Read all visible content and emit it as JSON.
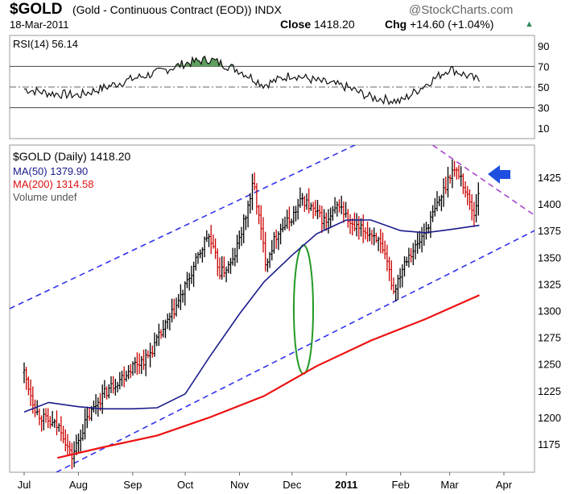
{
  "header": {
    "symbol": "$GOLD",
    "description": "(Gold - Continuous Contract (EOD))",
    "exchange": "INDX",
    "brand": "@StockCharts.com",
    "date": "18-Mar-2011",
    "close_label": "Close",
    "close_value": "1418.20",
    "chg_label": "Chg",
    "chg_value": "+14.60 (+1.04%)",
    "up_arrow_glyph": "▲"
  },
  "rsi_panel": {
    "label": "RSI(14) 56.14"
  },
  "price_panel": {
    "legend": {
      "title": "$GOLD (Daily) 1418.20",
      "ma50": "MA(50) 1379.90",
      "ma200": "MA(200) 1314.58",
      "volume": "Volume undef"
    }
  },
  "colors": {
    "up_bar": "#000000",
    "down_bar": "#cc0000",
    "ma50": "#1a1a8c",
    "ma200": "#ee1111",
    "channel": "#3333ee",
    "resistance": "#aa44cc",
    "arrow": "#1f4fe0",
    "ellipse": "#229922",
    "rsi_fill": "#5f9f5f"
  },
  "chart_data": [
    {
      "type": "line",
      "indicator": "RSI(14)",
      "yticks": [
        10,
        30,
        50,
        70,
        90
      ],
      "ylim": [
        0,
        100
      ],
      "reference_lines": [
        30,
        50,
        70
      ],
      "x": [
        "2010-07-01",
        "2010-07-15",
        "2010-08-01",
        "2010-08-15",
        "2010-09-01",
        "2010-09-15",
        "2010-10-01",
        "2010-10-15",
        "2010-11-01",
        "2010-11-15",
        "2010-12-01",
        "2010-12-15",
        "2011-01-01",
        "2011-01-15",
        "2011-02-01",
        "2011-02-15",
        "2011-03-01",
        "2011-03-18"
      ],
      "values": [
        48,
        44,
        42,
        49,
        58,
        64,
        73,
        77,
        66,
        52,
        62,
        56,
        50,
        40,
        36,
        52,
        68,
        56
      ]
    },
    {
      "type": "line",
      "series_kind": "ohlc",
      "yticks": [
        1175,
        1200,
        1225,
        1250,
        1275,
        1300,
        1325,
        1350,
        1375,
        1400,
        1425
      ],
      "ylim": [
        1155,
        1450
      ],
      "xticks": [
        "Jul",
        "Aug",
        "Sep",
        "Oct",
        "Nov",
        "Dec",
        "2011",
        "Feb",
        "Mar",
        "Apr"
      ],
      "price_x": [
        "2010-07-01",
        "2010-07-08",
        "2010-07-15",
        "2010-07-22",
        "2010-07-28",
        "2010-08-05",
        "2010-08-12",
        "2010-08-19",
        "2010-08-26",
        "2010-09-02",
        "2010-09-09",
        "2010-09-16",
        "2010-09-23",
        "2010-09-30",
        "2010-10-07",
        "2010-10-14",
        "2010-10-21",
        "2010-10-28",
        "2010-11-04",
        "2010-11-09",
        "2010-11-16",
        "2010-11-23",
        "2010-11-30",
        "2010-12-07",
        "2010-12-14",
        "2010-12-21",
        "2010-12-28",
        "2011-01-04",
        "2011-01-11",
        "2011-01-18",
        "2011-01-25",
        "2011-01-28",
        "2011-02-04",
        "2011-02-11",
        "2011-02-18",
        "2011-02-25",
        "2011-03-02",
        "2011-03-07",
        "2011-03-10",
        "2011-03-15",
        "2011-03-18"
      ],
      "price": [
        1242,
        1205,
        1195,
        1190,
        1162,
        1195,
        1215,
        1228,
        1238,
        1250,
        1255,
        1275,
        1295,
        1318,
        1345,
        1372,
        1335,
        1345,
        1385,
        1420,
        1345,
        1375,
        1385,
        1405,
        1392,
        1382,
        1400,
        1378,
        1375,
        1370,
        1340,
        1318,
        1350,
        1362,
        1385,
        1410,
        1432,
        1428,
        1412,
        1390,
        1418
      ],
      "ma50_x": [
        "2010-07-01",
        "2010-07-15",
        "2010-08-01",
        "2010-08-15",
        "2010-09-01",
        "2010-09-15",
        "2010-10-01",
        "2010-10-15",
        "2010-11-01",
        "2010-11-15",
        "2010-12-01",
        "2010-12-15",
        "2011-01-01",
        "2011-01-15",
        "2011-02-01",
        "2011-02-15",
        "2011-03-01",
        "2011-03-18"
      ],
      "ma50": [
        1205,
        1214,
        1210,
        1208,
        1208,
        1209,
        1222,
        1257,
        1297,
        1327,
        1352,
        1372,
        1385,
        1385,
        1375,
        1373,
        1376,
        1380
      ],
      "ma200_x": [
        "2010-07-20",
        "2010-08-15",
        "2010-09-15",
        "2010-10-15",
        "2010-11-15",
        "2010-12-15",
        "2011-01-15",
        "2011-02-15",
        "2011-03-18"
      ],
      "ma200": [
        1162,
        1172,
        1183,
        1200,
        1220,
        1248,
        1272,
        1292,
        1314.58
      ]
    }
  ]
}
